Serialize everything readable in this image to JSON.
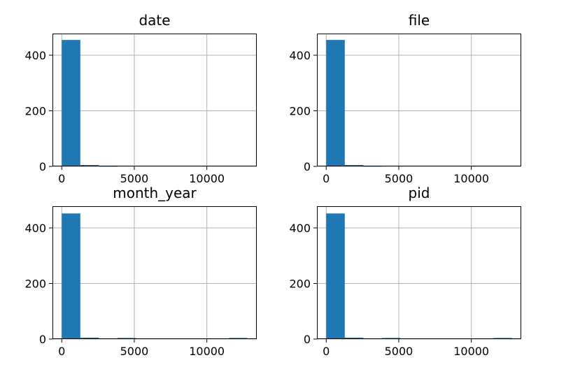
{
  "chart_data": [
    {
      "type": "bar",
      "title": "date",
      "bins": [
        [
          0,
          1280
        ],
        [
          1280,
          2560
        ],
        [
          2560,
          3840
        ],
        [
          3840,
          5120
        ],
        [
          5120,
          6400
        ],
        [
          6400,
          7680
        ],
        [
          7680,
          8960
        ],
        [
          8960,
          10240
        ],
        [
          10240,
          11520
        ],
        [
          11520,
          12800
        ]
      ],
      "values": [
        455,
        5,
        1,
        0,
        0,
        0,
        0,
        0,
        0,
        0
      ],
      "xlim": [
        -640,
        13440
      ],
      "ylim": [
        0,
        478
      ],
      "xticks": [
        0,
        5000,
        10000
      ],
      "xticklabels": [
        "0",
        "5000",
        "10000"
      ],
      "yticks": [
        0,
        200,
        400
      ],
      "yticklabels": [
        "0",
        "200",
        "400"
      ],
      "grid": true,
      "color": "#1f77b4"
    },
    {
      "type": "bar",
      "title": "file",
      "bins": [
        [
          0,
          1280
        ],
        [
          1280,
          2560
        ],
        [
          2560,
          3840
        ],
        [
          3840,
          5120
        ],
        [
          5120,
          6400
        ],
        [
          6400,
          7680
        ],
        [
          7680,
          8960
        ],
        [
          8960,
          10240
        ],
        [
          10240,
          11520
        ],
        [
          11520,
          12800
        ]
      ],
      "values": [
        455,
        5,
        1,
        0,
        0,
        0,
        0,
        0,
        0,
        0
      ],
      "xlim": [
        -640,
        13440
      ],
      "ylim": [
        0,
        478
      ],
      "xticks": [
        0,
        5000,
        10000
      ],
      "xticklabels": [
        "0",
        "5000",
        "10000"
      ],
      "yticks": [
        0,
        200,
        400
      ],
      "yticklabels": [
        "0",
        "200",
        "400"
      ],
      "grid": true,
      "color": "#1f77b4"
    },
    {
      "type": "bar",
      "title": "month_year",
      "bins": [
        [
          0,
          1280
        ],
        [
          1280,
          2560
        ],
        [
          2560,
          3840
        ],
        [
          3840,
          5120
        ],
        [
          5120,
          6400
        ],
        [
          6400,
          7680
        ],
        [
          7680,
          8960
        ],
        [
          8960,
          10240
        ],
        [
          10240,
          11520
        ],
        [
          11520,
          12800
        ]
      ],
      "values": [
        452,
        5,
        0,
        4,
        0,
        0,
        0,
        0,
        0,
        4
      ],
      "xlim": [
        -640,
        13440
      ],
      "ylim": [
        0,
        478
      ],
      "xticks": [
        0,
        5000,
        10000
      ],
      "xticklabels": [
        "0",
        "5000",
        "10000"
      ],
      "yticks": [
        0,
        200,
        400
      ],
      "yticklabels": [
        "0",
        "200",
        "400"
      ],
      "grid": true,
      "color": "#1f77b4"
    },
    {
      "type": "bar",
      "title": "pid",
      "bins": [
        [
          0,
          1280
        ],
        [
          1280,
          2560
        ],
        [
          2560,
          3840
        ],
        [
          3840,
          5120
        ],
        [
          5120,
          6400
        ],
        [
          6400,
          7680
        ],
        [
          7680,
          8960
        ],
        [
          8960,
          10240
        ],
        [
          10240,
          11520
        ],
        [
          11520,
          12800
        ]
      ],
      "values": [
        452,
        5,
        0,
        4,
        0,
        0,
        0,
        0,
        0,
        4
      ],
      "xlim": [
        -640,
        13440
      ],
      "ylim": [
        0,
        478
      ],
      "xticks": [
        0,
        5000,
        10000
      ],
      "xticklabels": [
        "0",
        "5000",
        "10000"
      ],
      "yticks": [
        0,
        200,
        400
      ],
      "yticklabels": [
        "0",
        "200",
        "400"
      ],
      "grid": true,
      "color": "#1f77b4"
    }
  ]
}
